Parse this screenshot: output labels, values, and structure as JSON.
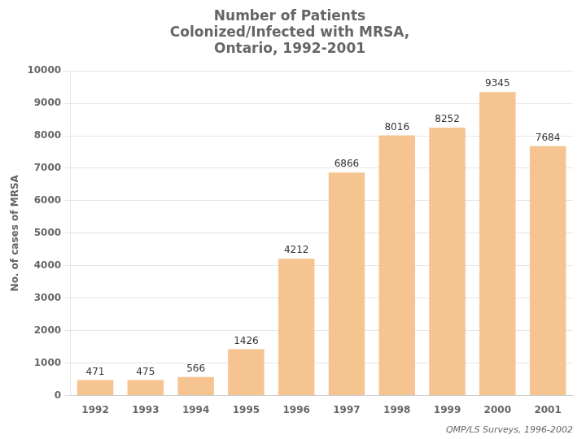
{
  "chart_data": {
    "type": "bar",
    "title": "Number of Patients\nColonized/Infected with MRSA,\nOntario, 1992-2001",
    "ylabel": "No. of cases of MRSA",
    "categories": [
      "1992",
      "1993",
      "1994",
      "1995",
      "1996",
      "1997",
      "1998",
      "1999",
      "2000",
      "2001"
    ],
    "values": [
      471,
      475,
      566,
      1426,
      4212,
      6866,
      8016,
      8252,
      9345,
      7684
    ],
    "color": "#F5C490",
    "ylim": [
      0,
      10000
    ],
    "yticks": [
      0,
      1000,
      2000,
      3000,
      4000,
      5000,
      6000,
      7000,
      8000,
      9000,
      10000
    ],
    "grid": true,
    "data_labels": true,
    "annotations": [
      "QMP/LS Surveys, 1996-2002"
    ]
  }
}
